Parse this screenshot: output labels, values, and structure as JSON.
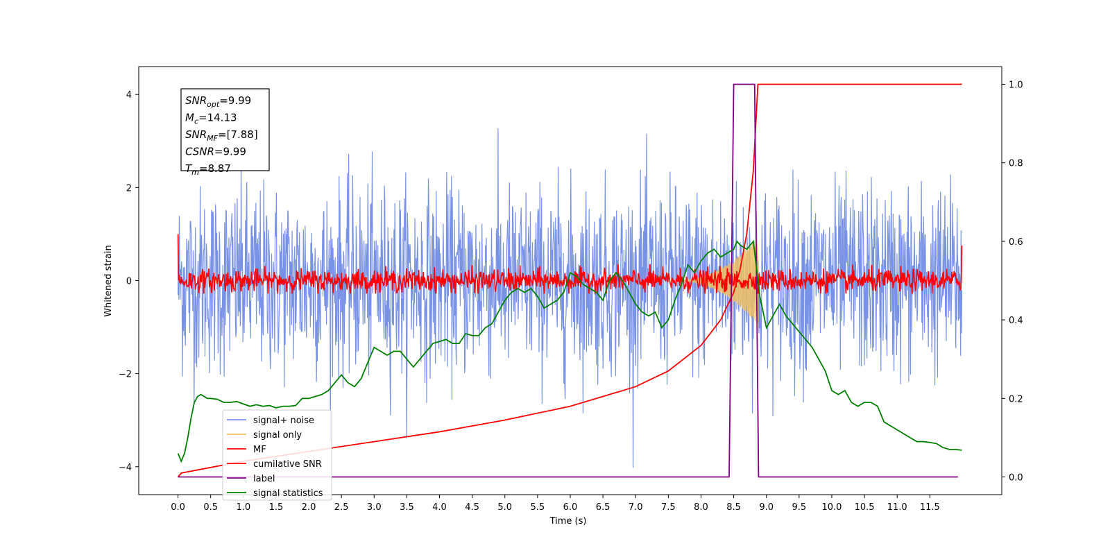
{
  "chart_data": {
    "type": "line",
    "title": "",
    "xlabel": "Time (s)",
    "ylabel_left": "Whitened strain",
    "ylabel_right": "",
    "xlim": [
      -0.6,
      12.6
    ],
    "ylim_left": [
      -4.6,
      4.6
    ],
    "ylim_right": [
      -0.045,
      1.045
    ],
    "xticks": [
      0.0,
      0.5,
      1.0,
      1.5,
      2.0,
      2.5,
      3.0,
      3.5,
      4.0,
      4.5,
      5.0,
      5.5,
      6.0,
      6.5,
      7.0,
      7.5,
      8.0,
      8.5,
      9.0,
      9.5,
      10.0,
      10.5,
      11.0,
      11.5
    ],
    "xtick_labels": [
      "0.0",
      "0.5",
      "1.0",
      "1.5",
      "2.0",
      "2.5",
      "3.0",
      "3.5",
      "4.0",
      "4.5",
      "5.0",
      "5.5",
      "6.0",
      "6.5",
      "7.0",
      "7.5",
      "8.0",
      "8.5",
      "9.0",
      "9.5",
      "10.0",
      "10.5",
      "11.0",
      "11.5"
    ],
    "yticks_left": [
      -4,
      -2,
      0,
      2,
      4
    ],
    "ytick_labels_left": [
      "−4",
      "−2",
      "0",
      "2",
      "4"
    ],
    "yticks_right": [
      0.0,
      0.2,
      0.4,
      0.6,
      0.8,
      1.0
    ],
    "ytick_labels_right": [
      "0.0",
      "0.2",
      "0.4",
      "0.6",
      "0.8",
      "1.0"
    ],
    "grid": false,
    "legend_position": "lower-left",
    "info_box": {
      "lines": [
        {
          "sym": "SNR",
          "sub": "opt",
          "val": "=9.99"
        },
        {
          "sym": "M",
          "sub": "c",
          "val": "=14.13"
        },
        {
          "sym": "SNR",
          "sub": "MF",
          "val": "=[7.88]"
        },
        {
          "sym": "CSNR",
          "sub": "",
          "val": "=9.99"
        },
        {
          "sym": "T",
          "sub": "m",
          "val": "=8.87"
        }
      ]
    },
    "series": [
      {
        "name": "signal+ noise",
        "color": "#7892e6",
        "axis": "left",
        "kind": "noise",
        "x_range": [
          0.0,
          11.99
        ],
        "sigma": 1.0,
        "mean": 0.0
      },
      {
        "name": "signal only",
        "color": "#f0c060",
        "axis": "left",
        "kind": "chirp",
        "x_range": [
          7.6,
          8.87
        ],
        "peak_amplitude": 0.95
      },
      {
        "name": "MF",
        "color": "#ff0000",
        "axis": "left",
        "kind": "mf",
        "x_range": [
          0.0,
          11.99
        ],
        "level": 0.0,
        "sigma": 0.12,
        "start_value": 1.0,
        "end_value": 0.75
      },
      {
        "name": "cumilative SNR",
        "color": "#ff0000",
        "axis": "right",
        "x": [
          0.0,
          0.05,
          1.0,
          2.0,
          3.0,
          4.0,
          5.0,
          6.0,
          7.0,
          7.5,
          8.0,
          8.3,
          8.5,
          8.6,
          8.7,
          8.8,
          8.87,
          9.0,
          10.0,
          11.0,
          11.99
        ],
        "y": [
          0.0,
          0.01,
          0.04,
          0.065,
          0.09,
          0.115,
          0.145,
          0.18,
          0.23,
          0.27,
          0.335,
          0.4,
          0.47,
          0.53,
          0.62,
          0.78,
          1.0,
          1.0,
          1.0,
          1.0,
          1.0
        ]
      },
      {
        "name": "label",
        "color": "#800080",
        "axis": "right",
        "x": [
          0.0,
          8.43,
          8.5,
          8.82,
          8.88,
          11.93
        ],
        "y": [
          0.0,
          0.0,
          1.0,
          1.0,
          0.0,
          0.0
        ]
      },
      {
        "name": "signal statistics",
        "color": "#008000",
        "axis": "right",
        "x": [
          0.0,
          0.05,
          0.1,
          0.15,
          0.2,
          0.25,
          0.3,
          0.35,
          0.4,
          0.45,
          0.5,
          0.6,
          0.7,
          0.8,
          0.9,
          1.0,
          1.1,
          1.2,
          1.3,
          1.4,
          1.5,
          1.6,
          1.7,
          1.8,
          1.9,
          2.0,
          2.1,
          2.2,
          2.3,
          2.4,
          2.5,
          2.6,
          2.7,
          2.8,
          2.9,
          3.0,
          3.1,
          3.2,
          3.3,
          3.4,
          3.5,
          3.6,
          3.7,
          3.8,
          3.9,
          4.0,
          4.1,
          4.2,
          4.3,
          4.4,
          4.5,
          4.6,
          4.7,
          4.8,
          4.9,
          5.0,
          5.1,
          5.2,
          5.3,
          5.4,
          5.5,
          5.6,
          5.7,
          5.8,
          5.9,
          6.0,
          6.1,
          6.2,
          6.3,
          6.4,
          6.5,
          6.6,
          6.7,
          6.8,
          6.9,
          7.0,
          7.1,
          7.2,
          7.3,
          7.4,
          7.5,
          7.6,
          7.7,
          7.8,
          7.9,
          8.0,
          8.1,
          8.2,
          8.3,
          8.4,
          8.5,
          8.55,
          8.6,
          8.7,
          8.8,
          8.9,
          9.0,
          9.1,
          9.2,
          9.3,
          9.4,
          9.5,
          9.6,
          9.7,
          9.8,
          9.9,
          10.0,
          10.1,
          10.2,
          10.3,
          10.4,
          10.5,
          10.6,
          10.7,
          10.8,
          10.9,
          11.0,
          11.1,
          11.2,
          11.3,
          11.4,
          11.5,
          11.6,
          11.7,
          11.8,
          11.9,
          11.99
        ],
        "y": [
          0.06,
          0.04,
          0.06,
          0.1,
          0.15,
          0.19,
          0.205,
          0.21,
          0.205,
          0.2,
          0.2,
          0.198,
          0.19,
          0.19,
          0.192,
          0.186,
          0.18,
          0.184,
          0.18,
          0.182,
          0.176,
          0.18,
          0.18,
          0.182,
          0.2,
          0.2,
          0.205,
          0.21,
          0.22,
          0.24,
          0.26,
          0.24,
          0.23,
          0.25,
          0.29,
          0.33,
          0.32,
          0.31,
          0.32,
          0.32,
          0.3,
          0.28,
          0.3,
          0.32,
          0.34,
          0.345,
          0.35,
          0.34,
          0.34,
          0.365,
          0.36,
          0.36,
          0.38,
          0.39,
          0.42,
          0.45,
          0.47,
          0.48,
          0.47,
          0.48,
          0.46,
          0.43,
          0.44,
          0.45,
          0.47,
          0.52,
          0.51,
          0.49,
          0.48,
          0.47,
          0.45,
          0.5,
          0.52,
          0.5,
          0.47,
          0.44,
          0.42,
          0.41,
          0.42,
          0.38,
          0.4,
          0.45,
          0.49,
          0.54,
          0.52,
          0.55,
          0.57,
          0.58,
          0.56,
          0.57,
          0.58,
          0.6,
          0.59,
          0.58,
          0.6,
          0.46,
          0.38,
          0.41,
          0.44,
          0.41,
          0.39,
          0.37,
          0.35,
          0.33,
          0.3,
          0.27,
          0.22,
          0.21,
          0.22,
          0.19,
          0.18,
          0.19,
          0.19,
          0.18,
          0.14,
          0.13,
          0.12,
          0.11,
          0.1,
          0.09,
          0.09,
          0.088,
          0.085,
          0.075,
          0.07,
          0.07,
          0.068
        ]
      }
    ]
  }
}
